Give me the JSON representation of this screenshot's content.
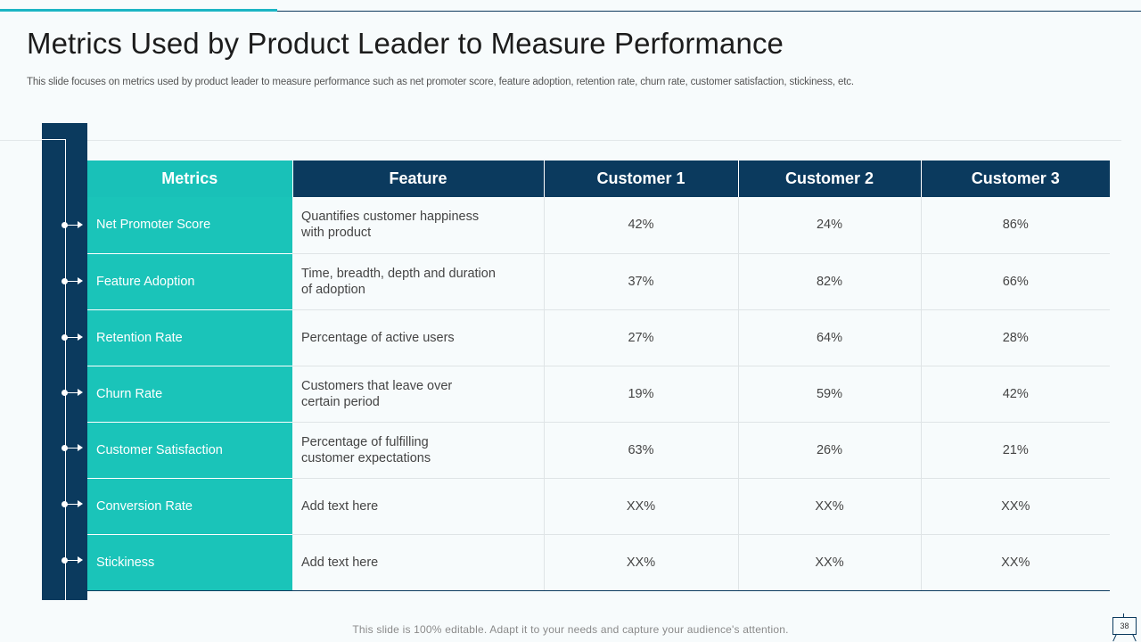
{
  "slide": {
    "title": "Metrics Used by Product Leader to Measure Performance",
    "subtitle": "This slide focuses on metrics used by product leader to measure performance such as net promoter score, feature adoption, retention rate, churn rate, customer satisfaction, stickiness, etc.",
    "footer": "This slide is 100% editable. Adapt it to your needs and capture your audience's attention.",
    "page_number": "38"
  },
  "table": {
    "headers": [
      "Metrics",
      "Feature",
      "Customer 1",
      "Customer 2",
      "Customer 3"
    ],
    "rows": [
      {
        "metric": "Net Promoter Score",
        "feature_line1": "Quantifies customer happiness",
        "feature_line2": "with product",
        "c1": "42%",
        "c2": "24%",
        "c3": "86%"
      },
      {
        "metric": "Feature Adoption",
        "feature_line1": "Time, breadth, depth and duration",
        "feature_line2": "of adoption",
        "c1": "37%",
        "c2": "82%",
        "c3": "66%"
      },
      {
        "metric": "Retention Rate",
        "feature_line1": "Percentage of active users",
        "feature_line2": "",
        "c1": "27%",
        "c2": "64%",
        "c3": "28%"
      },
      {
        "metric": "Churn Rate",
        "feature_line1": "Customers that leave over",
        "feature_line2": "certain period",
        "c1": "19%",
        "c2": "59%",
        "c3": "42%"
      },
      {
        "metric": "Customer Satisfaction",
        "feature_line1": "Percentage of fulfilling",
        "feature_line2": "customer expectations",
        "c1": "63%",
        "c2": "26%",
        "c3": "21%"
      },
      {
        "metric": "Conversion Rate",
        "feature_line1": "Add text here",
        "feature_line2": "",
        "c1": "XX%",
        "c2": "XX%",
        "c3": "XX%"
      },
      {
        "metric": "Stickiness",
        "feature_line1": "Add text here",
        "feature_line2": "",
        "c1": "XX%",
        "c2": "XX%",
        "c3": "XX%"
      }
    ]
  },
  "colors": {
    "navy": "#0b3a5e",
    "teal": "#1ac4b9",
    "accent": "#1bb5c4"
  }
}
